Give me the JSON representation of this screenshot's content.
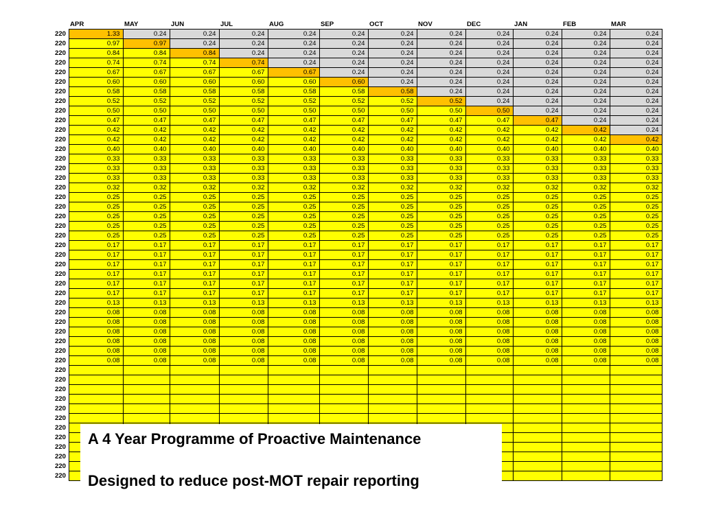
{
  "months": [
    "APR",
    "MAY",
    "JUN",
    "JUL",
    "AUG",
    "SEP",
    "OCT",
    "NOV",
    "DEC",
    "JAN",
    "FEB",
    "MAR"
  ],
  "row_label": "220",
  "colors": {
    "yellow": "#FFFF00",
    "orange": "#FFC000",
    "grey": "#D9D9D9"
  },
  "rows": [
    {
      "values": [
        "1.33",
        "0.24",
        "0.24",
        "0.24",
        "0.24",
        "0.24",
        "0.24",
        "0.24",
        "0.24",
        "0.24",
        "0.24",
        "0.24"
      ],
      "highlight": 0,
      "grey_after": true
    },
    {
      "values": [
        "0.97",
        "0.97",
        "0.24",
        "0.24",
        "0.24",
        "0.24",
        "0.24",
        "0.24",
        "0.24",
        "0.24",
        "0.24",
        "0.24"
      ],
      "highlight": 1,
      "grey_after": true
    },
    {
      "values": [
        "0.84",
        "0.84",
        "0.84",
        "0.24",
        "0.24",
        "0.24",
        "0.24",
        "0.24",
        "0.24",
        "0.24",
        "0.24",
        "0.24"
      ],
      "highlight": 2,
      "grey_after": true
    },
    {
      "values": [
        "0.74",
        "0.74",
        "0.74",
        "0.74",
        "0.24",
        "0.24",
        "0.24",
        "0.24",
        "0.24",
        "0.24",
        "0.24",
        "0.24"
      ],
      "highlight": 3,
      "grey_after": true
    },
    {
      "values": [
        "0.67",
        "0.67",
        "0.67",
        "0.67",
        "0.67",
        "0.24",
        "0.24",
        "0.24",
        "0.24",
        "0.24",
        "0.24",
        "0.24"
      ],
      "highlight": 4,
      "grey_after": true
    },
    {
      "values": [
        "0.60",
        "0.60",
        "0.60",
        "0.60",
        "0.60",
        "0.60",
        "0.24",
        "0.24",
        "0.24",
        "0.24",
        "0.24",
        "0.24"
      ],
      "highlight": 5,
      "grey_after": true
    },
    {
      "values": [
        "0.58",
        "0.58",
        "0.58",
        "0.58",
        "0.58",
        "0.58",
        "0.58",
        "0.24",
        "0.24",
        "0.24",
        "0.24",
        "0.24"
      ],
      "highlight": 6,
      "grey_after": true
    },
    {
      "values": [
        "0.52",
        "0.52",
        "0.52",
        "0.52",
        "0.52",
        "0.52",
        "0.52",
        "0.52",
        "0.24",
        "0.24",
        "0.24",
        "0.24"
      ],
      "highlight": 7,
      "grey_after": true
    },
    {
      "values": [
        "0.50",
        "0.50",
        "0.50",
        "0.50",
        "0.50",
        "0.50",
        "0.50",
        "0.50",
        "0.50",
        "0.24",
        "0.24",
        "0.24"
      ],
      "highlight": 8,
      "grey_after": true
    },
    {
      "values": [
        "0.47",
        "0.47",
        "0.47",
        "0.47",
        "0.47",
        "0.47",
        "0.47",
        "0.47",
        "0.47",
        "0.47",
        "0.24",
        "0.24"
      ],
      "highlight": 9,
      "grey_after": true
    },
    {
      "values": [
        "0.42",
        "0.42",
        "0.42",
        "0.42",
        "0.42",
        "0.42",
        "0.42",
        "0.42",
        "0.42",
        "0.42",
        "0.42",
        "0.24"
      ],
      "highlight": 10,
      "grey_after": true
    },
    {
      "values": [
        "0.42",
        "0.42",
        "0.42",
        "0.42",
        "0.42",
        "0.42",
        "0.42",
        "0.42",
        "0.42",
        "0.42",
        "0.42",
        "0.42"
      ],
      "highlight": 11,
      "grey_after": true
    },
    {
      "values": [
        "0.40",
        "0.40",
        "0.40",
        "0.40",
        "0.40",
        "0.40",
        "0.40",
        "0.40",
        "0.40",
        "0.40",
        "0.40",
        "0.40"
      ]
    },
    {
      "values": [
        "0.33",
        "0.33",
        "0.33",
        "0.33",
        "0.33",
        "0.33",
        "0.33",
        "0.33",
        "0.33",
        "0.33",
        "0.33",
        "0.33"
      ]
    },
    {
      "values": [
        "0.33",
        "0.33",
        "0.33",
        "0.33",
        "0.33",
        "0.33",
        "0.33",
        "0.33",
        "0.33",
        "0.33",
        "0.33",
        "0.33"
      ]
    },
    {
      "values": [
        "0.33",
        "0.33",
        "0.33",
        "0.33",
        "0.33",
        "0.33",
        "0.33",
        "0.33",
        "0.33",
        "0.33",
        "0.33",
        "0.33"
      ]
    },
    {
      "values": [
        "0.32",
        "0.32",
        "0.32",
        "0.32",
        "0.32",
        "0.32",
        "0.32",
        "0.32",
        "0.32",
        "0.32",
        "0.32",
        "0.32"
      ]
    },
    {
      "values": [
        "0.25",
        "0.25",
        "0.25",
        "0.25",
        "0.25",
        "0.25",
        "0.25",
        "0.25",
        "0.25",
        "0.25",
        "0.25",
        "0.25"
      ]
    },
    {
      "values": [
        "0.25",
        "0.25",
        "0.25",
        "0.25",
        "0.25",
        "0.25",
        "0.25",
        "0.25",
        "0.25",
        "0.25",
        "0.25",
        "0.25"
      ]
    },
    {
      "values": [
        "0.25",
        "0.25",
        "0.25",
        "0.25",
        "0.25",
        "0.25",
        "0.25",
        "0.25",
        "0.25",
        "0.25",
        "0.25",
        "0.25"
      ]
    },
    {
      "values": [
        "0.25",
        "0.25",
        "0.25",
        "0.25",
        "0.25",
        "0.25",
        "0.25",
        "0.25",
        "0.25",
        "0.25",
        "0.25",
        "0.25"
      ]
    },
    {
      "values": [
        "0.25",
        "0.25",
        "0.25",
        "0.25",
        "0.25",
        "0.25",
        "0.25",
        "0.25",
        "0.25",
        "0.25",
        "0.25",
        "0.25"
      ]
    },
    {
      "values": [
        "0.17",
        "0.17",
        "0.17",
        "0.17",
        "0.17",
        "0.17",
        "0.17",
        "0.17",
        "0.17",
        "0.17",
        "0.17",
        "0.17"
      ]
    },
    {
      "values": [
        "0.17",
        "0.17",
        "0.17",
        "0.17",
        "0.17",
        "0.17",
        "0.17",
        "0.17",
        "0.17",
        "0.17",
        "0.17",
        "0.17"
      ]
    },
    {
      "values": [
        "0.17",
        "0.17",
        "0.17",
        "0.17",
        "0.17",
        "0.17",
        "0.17",
        "0.17",
        "0.17",
        "0.17",
        "0.17",
        "0.17"
      ]
    },
    {
      "values": [
        "0.17",
        "0.17",
        "0.17",
        "0.17",
        "0.17",
        "0.17",
        "0.17",
        "0.17",
        "0.17",
        "0.17",
        "0.17",
        "0.17"
      ]
    },
    {
      "values": [
        "0.17",
        "0.17",
        "0.17",
        "0.17",
        "0.17",
        "0.17",
        "0.17",
        "0.17",
        "0.17",
        "0.17",
        "0.17",
        "0.17"
      ]
    },
    {
      "values": [
        "0.17",
        "0.17",
        "0.17",
        "0.17",
        "0.17",
        "0.17",
        "0.17",
        "0.17",
        "0.17",
        "0.17",
        "0.17",
        "0.17"
      ]
    },
    {
      "values": [
        "0.13",
        "0.13",
        "0.13",
        "0.13",
        "0.13",
        "0.13",
        "0.13",
        "0.13",
        "0.13",
        "0.13",
        "0.13",
        "0.13"
      ]
    },
    {
      "values": [
        "0.08",
        "0.08",
        "0.08",
        "0.08",
        "0.08",
        "0.08",
        "0.08",
        "0.08",
        "0.08",
        "0.08",
        "0.08",
        "0.08"
      ]
    },
    {
      "values": [
        "0.08",
        "0.08",
        "0.08",
        "0.08",
        "0.08",
        "0.08",
        "0.08",
        "0.08",
        "0.08",
        "0.08",
        "0.08",
        "0.08"
      ]
    },
    {
      "values": [
        "0.08",
        "0.08",
        "0.08",
        "0.08",
        "0.08",
        "0.08",
        "0.08",
        "0.08",
        "0.08",
        "0.08",
        "0.08",
        "0.08"
      ]
    },
    {
      "values": [
        "0.08",
        "0.08",
        "0.08",
        "0.08",
        "0.08",
        "0.08",
        "0.08",
        "0.08",
        "0.08",
        "0.08",
        "0.08",
        "0.08"
      ]
    },
    {
      "values": [
        "0.08",
        "0.08",
        "0.08",
        "0.08",
        "0.08",
        "0.08",
        "0.08",
        "0.08",
        "0.08",
        "0.08",
        "0.08",
        "0.08"
      ]
    },
    {
      "values": [
        "0.08",
        "0.08",
        "0.08",
        "0.08",
        "0.08",
        "0.08",
        "0.08",
        "0.08",
        "0.08",
        "0.08",
        "0.08",
        "0.08"
      ]
    },
    {
      "values": [
        "",
        "",
        "",
        "",
        "",
        "",
        "",
        "",
        "",
        "",
        "",
        ""
      ]
    },
    {
      "values": [
        "",
        "",
        "",
        "",
        "",
        "",
        "",
        "",
        "",
        "",
        "",
        ""
      ]
    },
    {
      "values": [
        "",
        "",
        "",
        "",
        "",
        "",
        "",
        "",
        "",
        "",
        "",
        ""
      ]
    },
    {
      "values": [
        "",
        "",
        "",
        "",
        "",
        "",
        "",
        "",
        "",
        "",
        "",
        ""
      ]
    },
    {
      "values": [
        "",
        "",
        "",
        "",
        "",
        "",
        "",
        "",
        "",
        "",
        "",
        ""
      ]
    },
    {
      "values": [
        "",
        "",
        "",
        "",
        "",
        "",
        "",
        "",
        "",
        "",
        "",
        ""
      ]
    },
    {
      "values": [
        "",
        "",
        "",
        "",
        "",
        "",
        "",
        "",
        "",
        "",
        "",
        ""
      ]
    },
    {
      "values": [
        "",
        "",
        "",
        "",
        "",
        "",
        "",
        "",
        "",
        "",
        "",
        ""
      ]
    },
    {
      "values": [
        "",
        "",
        "",
        "",
        "",
        "",
        "",
        "",
        "",
        "",
        "",
        ""
      ]
    },
    {
      "values": [
        "",
        "",
        "",
        "",
        "",
        "",
        "",
        "",
        "",
        "",
        "",
        ""
      ]
    },
    {
      "values": [
        "",
        "",
        "",
        "",
        "",
        "",
        "",
        "",
        "",
        "",
        "",
        ""
      ]
    },
    {
      "values": [
        "",
        "",
        "",
        "",
        "",
        "",
        "",
        "",
        "",
        "",
        "",
        ""
      ]
    }
  ],
  "overlay": {
    "title": "A 4 Year Programme of Proactive Maintenance",
    "subtitle": "Designed to reduce post-MOT repair reporting"
  }
}
